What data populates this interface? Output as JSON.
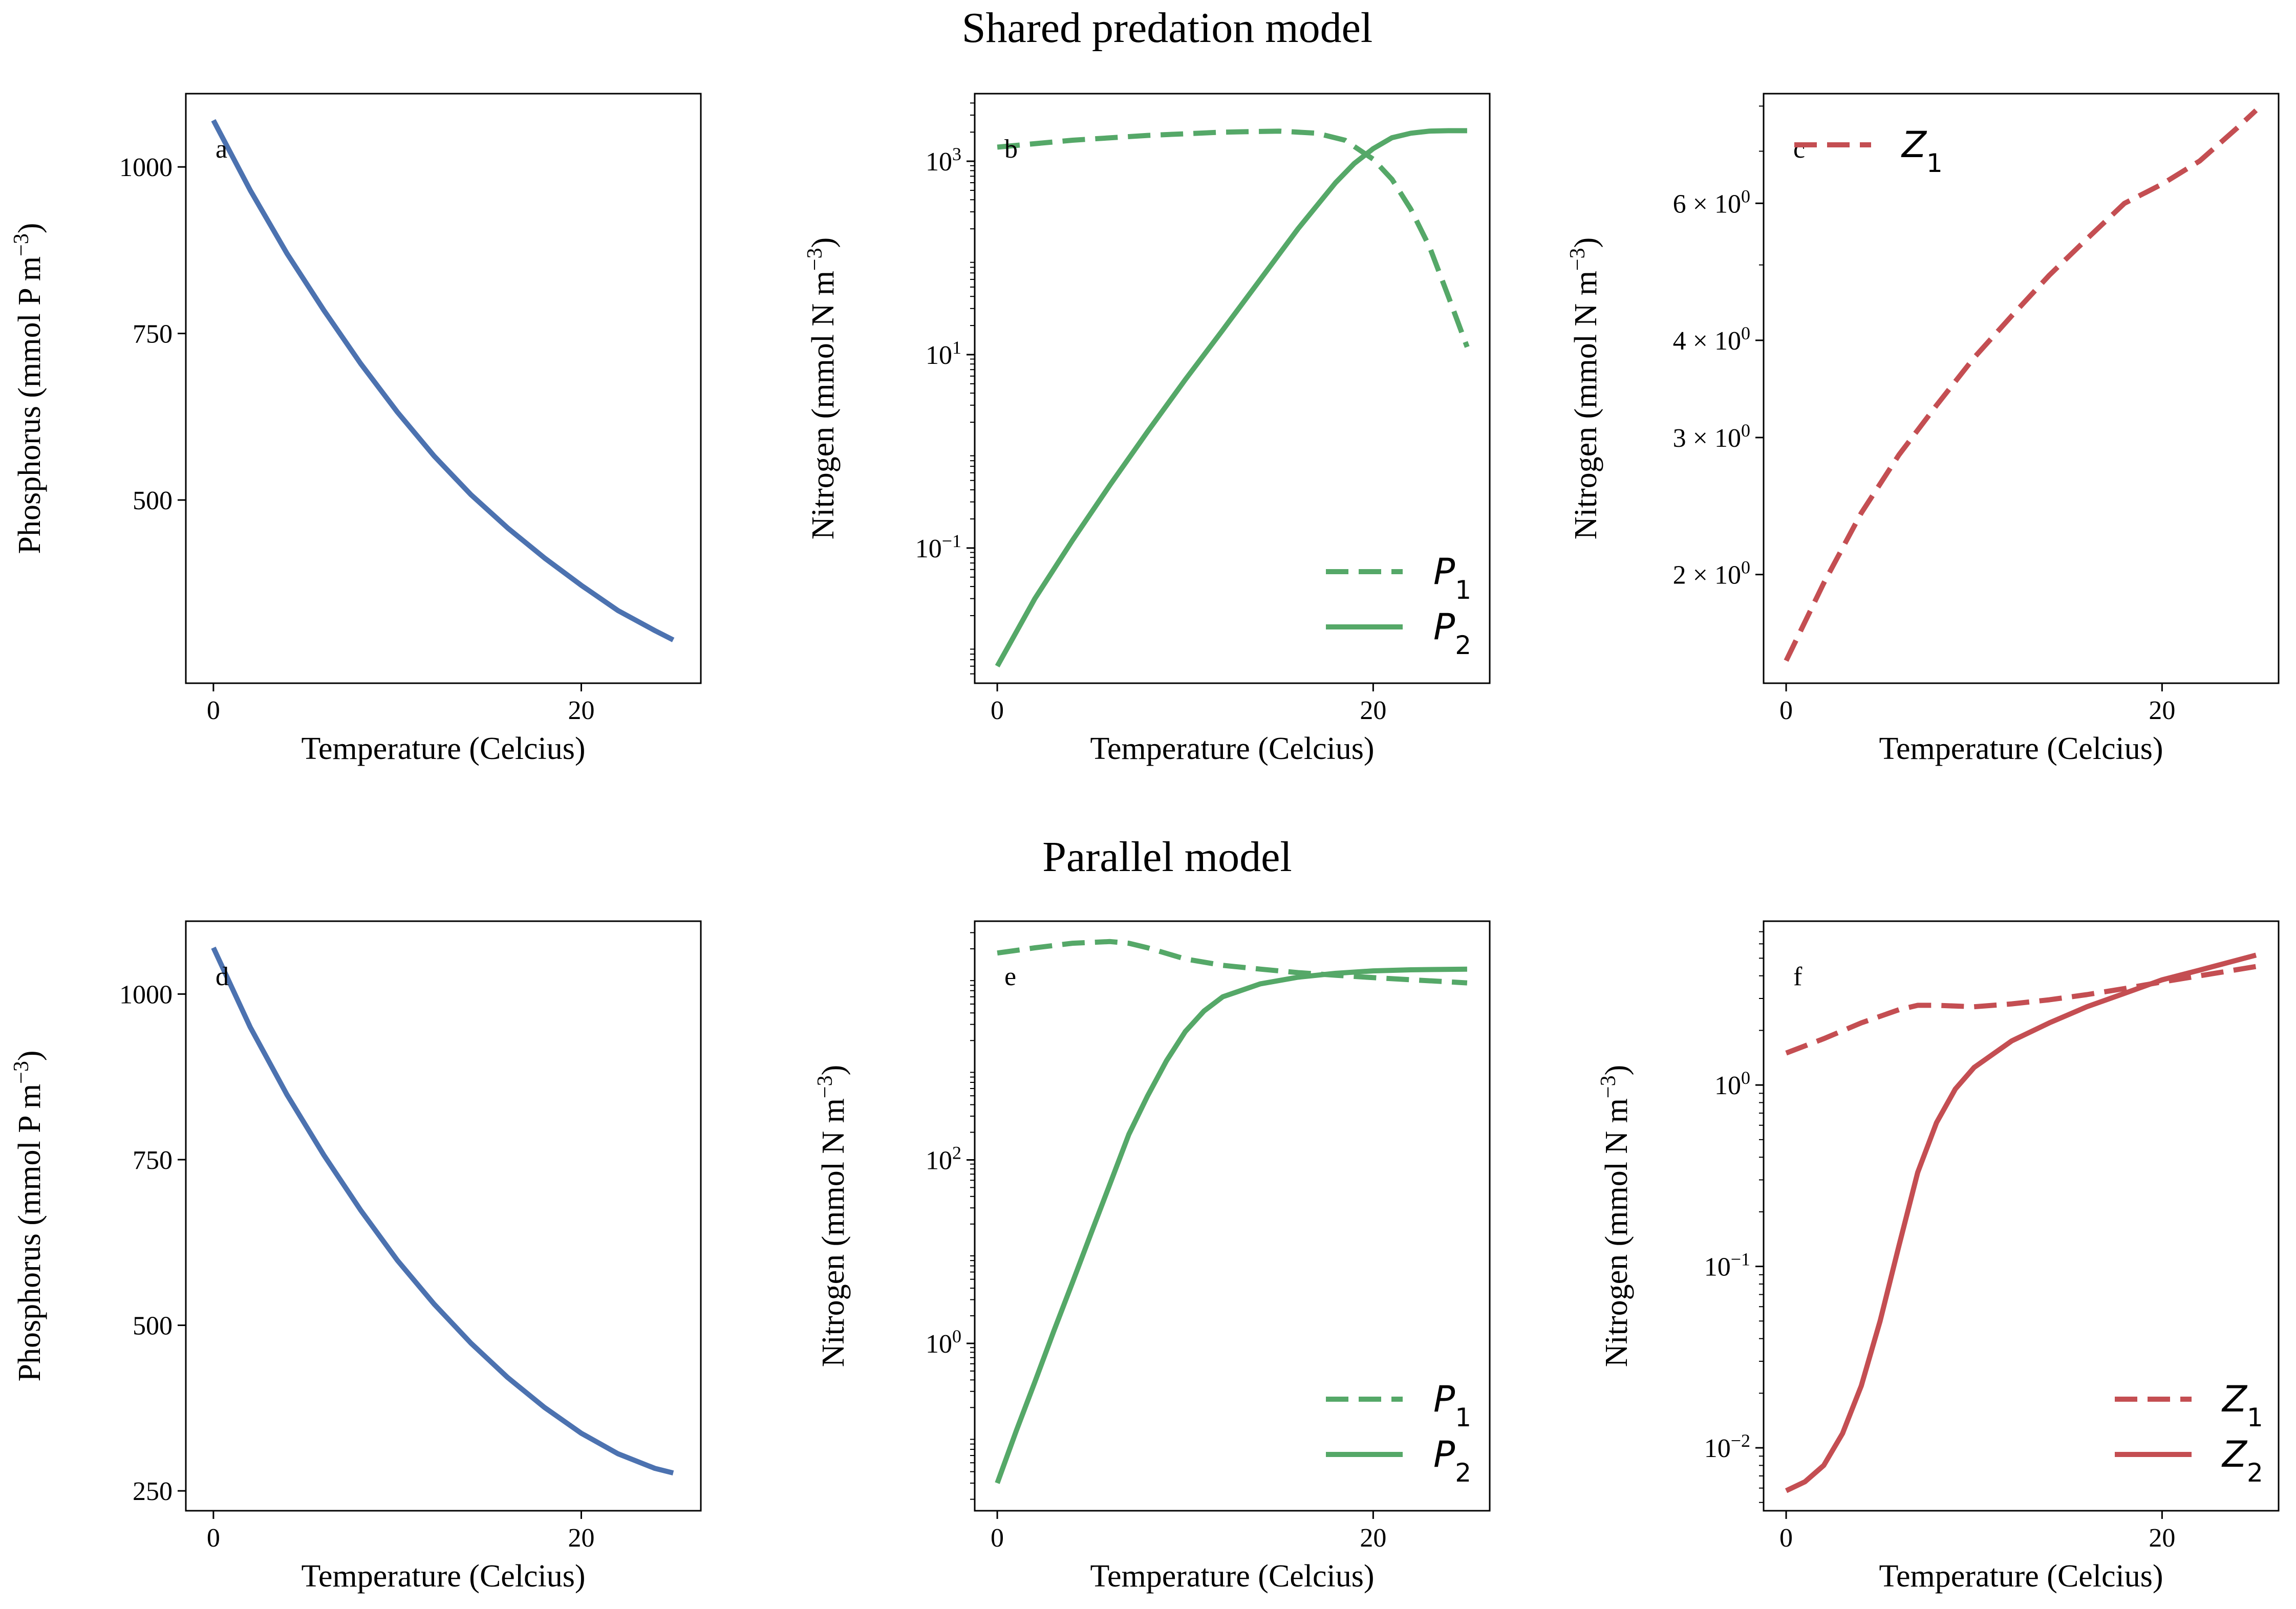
{
  "figure": {
    "row_titles": [
      "Shared predation model",
      "Parallel model"
    ]
  },
  "colors": {
    "blue": "#4c72b0",
    "green": "#55a868",
    "red": "#c44e52"
  },
  "chart_data": [
    {
      "id": "a",
      "type": "line",
      "panel_label": "a",
      "xlabel": "Temperature (Celcius)",
      "ylabel": "Phosphorus (mmol P m−3)",
      "ylabel_parts": [
        "Phosphorus (mmol P m",
        "−3",
        ")"
      ],
      "yscale": "linear",
      "xlim": [
        -1.5,
        26.5
      ],
      "ylim": [
        225,
        1110
      ],
      "xticks": [
        0,
        20
      ],
      "xtick_labels": [
        "0",
        "20"
      ],
      "yticks": [
        500,
        750,
        1000
      ],
      "ytick_labels": [
        "500",
        "750",
        "1000"
      ],
      "legend": [],
      "series": [
        {
          "name": "phosphorus",
          "color": "blue",
          "style": "solid",
          "x": [
            0,
            2,
            4,
            6,
            8,
            10,
            12,
            14,
            16,
            18,
            20,
            22,
            24,
            25
          ],
          "y": [
            1070,
            965,
            870,
            785,
            705,
            632,
            566,
            508,
            458,
            413,
            372,
            334,
            304,
            290
          ]
        }
      ]
    },
    {
      "id": "b",
      "type": "line",
      "panel_label": "b",
      "xlabel": "Temperature (Celcius)",
      "ylabel": "Nitrogen (mmol N m−3)",
      "ylabel_parts": [
        "Nitrogen (mmol N m",
        "−3",
        ")"
      ],
      "yscale": "log",
      "xlim": [
        -1.2,
        26.2
      ],
      "ylim": [
        0.004,
        5000
      ],
      "xticks": [
        0,
        20
      ],
      "xtick_labels": [
        "0",
        "20"
      ],
      "yticks": [
        0.1,
        10,
        1000
      ],
      "ytick_labels": [
        [
          "10",
          "−1"
        ],
        [
          "10",
          "1"
        ],
        [
          "10",
          "3"
        ]
      ],
      "legend": [
        {
          "label": "P",
          "sub": "1",
          "color": "green",
          "style": "dashed"
        },
        {
          "label": "P",
          "sub": "2",
          "color": "green",
          "style": "solid"
        }
      ],
      "series": [
        {
          "name": "P1",
          "color": "green",
          "style": "dashed",
          "x": [
            0,
            4,
            8,
            12,
            15,
            17,
            18.5,
            20,
            21,
            22,
            23,
            24,
            25
          ],
          "y": [
            1400,
            1650,
            1850,
            2000,
            2050,
            1950,
            1650,
            1050,
            650,
            320,
            130,
            40,
            12
          ]
        },
        {
          "name": "P2",
          "color": "green",
          "style": "solid",
          "x": [
            0,
            2,
            4,
            6,
            8,
            10,
            12,
            14,
            16,
            18,
            19,
            20,
            21,
            22,
            23,
            24,
            25
          ],
          "y": [
            0.006,
            0.03,
            0.12,
            0.45,
            1.6,
            5.5,
            18,
            60,
            200,
            600,
            950,
            1350,
            1750,
            1950,
            2050,
            2070,
            2070
          ]
        }
      ]
    },
    {
      "id": "c",
      "type": "line",
      "panel_label": "c",
      "xlabel": "Temperature (Celcius)",
      "ylabel": "Nitrogen (mmol N m−3)",
      "ylabel_parts": [
        "Nitrogen (mmol N m",
        "−3",
        ")"
      ],
      "yscale": "log",
      "xlim": [
        -1.2,
        26.2
      ],
      "ylim": [
        1.45,
        8.3
      ],
      "xticks": [
        0,
        20
      ],
      "xtick_labels": [
        "0",
        "20"
      ],
      "yticks": [
        2,
        3,
        4,
        6
      ],
      "ytick_labels": [
        [
          "2 × 10",
          "0"
        ],
        [
          "3 × 10",
          "0"
        ],
        [
          "4 × 10",
          "0"
        ],
        [
          "6 × 10",
          "0"
        ]
      ],
      "legend": [
        {
          "label": "Z",
          "sub": "1",
          "color": "red",
          "style": "dashed"
        }
      ],
      "series": [
        {
          "name": "Z1",
          "color": "red",
          "style": "dashed",
          "x": [
            0,
            2,
            4,
            6,
            8,
            10,
            12,
            14,
            16,
            18,
            20,
            22,
            24,
            25
          ],
          "y": [
            1.55,
            1.95,
            2.4,
            2.85,
            3.3,
            3.8,
            4.3,
            4.85,
            5.4,
            6.0,
            6.35,
            6.8,
            7.5,
            7.9
          ]
        }
      ]
    },
    {
      "id": "d",
      "type": "line",
      "panel_label": "d",
      "xlabel": "Temperature (Celcius)",
      "ylabel": "Phosphorus (mmol P m−3)",
      "ylabel_parts": [
        "Phosphorus (mmol P m",
        "−3",
        ")"
      ],
      "yscale": "linear",
      "xlim": [
        -1.5,
        26.5
      ],
      "ylim": [
        220,
        1110
      ],
      "xticks": [
        0,
        20
      ],
      "xtick_labels": [
        "0",
        "20"
      ],
      "yticks": [
        250,
        500,
        750,
        1000
      ],
      "ytick_labels": [
        "250",
        "500",
        "750",
        "1000"
      ],
      "legend": [],
      "series": [
        {
          "name": "phosphorus",
          "color": "blue",
          "style": "solid",
          "x": [
            0,
            2,
            4,
            6,
            8,
            10,
            12,
            14,
            16,
            18,
            20,
            22,
            24,
            25
          ],
          "y": [
            1070,
            950,
            848,
            757,
            674,
            598,
            532,
            473,
            421,
            376,
            337,
            306,
            284,
            277
          ]
        }
      ]
    },
    {
      "id": "e",
      "type": "line",
      "panel_label": "e",
      "xlabel": "Temperature (Celcius)",
      "ylabel": "Nitrogen (mmol N m−3)",
      "ylabel_parts": [
        "Nitrogen (mmol N m",
        "−3",
        ")"
      ],
      "yscale": "log",
      "xlim": [
        -1.2,
        26.2
      ],
      "ylim": [
        0.015,
        40000
      ],
      "xticks": [
        0,
        20
      ],
      "xtick_labels": [
        "0",
        "20"
      ],
      "yticks": [
        1,
        100
      ],
      "ytick_labels": [
        [
          "10",
          "0"
        ],
        [
          "10",
          "2"
        ]
      ],
      "legend": [
        {
          "label": "P",
          "sub": "1",
          "color": "green",
          "style": "dashed"
        },
        {
          "label": "P",
          "sub": "2",
          "color": "green",
          "style": "solid"
        }
      ],
      "series": [
        {
          "name": "P1",
          "color": "green",
          "style": "dashed",
          "x": [
            0,
            2,
            4,
            6,
            7,
            8,
            10,
            12,
            14,
            16,
            18,
            20,
            22,
            25
          ],
          "y": [
            18000,
            20500,
            23000,
            24000,
            23000,
            20500,
            15500,
            13200,
            12000,
            11000,
            10300,
            9700,
            9200,
            8500
          ]
        },
        {
          "name": "P2",
          "color": "green",
          "style": "solid",
          "x": [
            0,
            1,
            2,
            3,
            4,
            5,
            6,
            7,
            8,
            9,
            10,
            11,
            12,
            14,
            16,
            18,
            20,
            22,
            25
          ],
          "y": [
            0.03,
            0.11,
            0.38,
            1.35,
            4.6,
            16,
            55,
            190,
            500,
            1200,
            2500,
            4200,
            6000,
            8300,
            9800,
            10800,
            11500,
            11800,
            12000
          ]
        }
      ]
    },
    {
      "id": "f",
      "type": "line",
      "panel_label": "f",
      "xlabel": "Temperature (Celcius)",
      "ylabel": "Nitrogen (mmol N m−3)",
      "ylabel_parts": [
        "Nitrogen (mmol N m",
        "−3",
        ")"
      ],
      "yscale": "log",
      "xlim": [
        -1.2,
        26.2
      ],
      "ylim": [
        0.0045,
        8
      ],
      "xticks": [
        0,
        20
      ],
      "xtick_labels": [
        "0",
        "20"
      ],
      "yticks": [
        0.01,
        0.1,
        1
      ],
      "ytick_labels": [
        [
          "10",
          "−2"
        ],
        [
          "10",
          "−1"
        ],
        [
          "10",
          "0"
        ]
      ],
      "legend": [
        {
          "label": "Z",
          "sub": "1",
          "color": "red",
          "style": "dashed"
        },
        {
          "label": "Z",
          "sub": "2",
          "color": "red",
          "style": "solid"
        }
      ],
      "series": [
        {
          "name": "Z1",
          "color": "red",
          "style": "dashed",
          "x": [
            0,
            2,
            4,
            6,
            7,
            8,
            10,
            12,
            14,
            16,
            18,
            20,
            22,
            25
          ],
          "y": [
            1.5,
            1.8,
            2.2,
            2.6,
            2.75,
            2.75,
            2.7,
            2.8,
            2.95,
            3.15,
            3.4,
            3.7,
            4.0,
            4.5
          ]
        },
        {
          "name": "Z2",
          "color": "red",
          "style": "solid",
          "x": [
            0,
            1,
            2,
            3,
            4,
            5,
            6,
            7,
            8,
            9,
            10,
            12,
            14,
            16,
            18,
            20,
            22,
            25
          ],
          "y": [
            0.0058,
            0.0065,
            0.008,
            0.012,
            0.022,
            0.05,
            0.13,
            0.33,
            0.62,
            0.95,
            1.25,
            1.75,
            2.2,
            2.7,
            3.2,
            3.8,
            4.3,
            5.2
          ]
        }
      ]
    }
  ]
}
